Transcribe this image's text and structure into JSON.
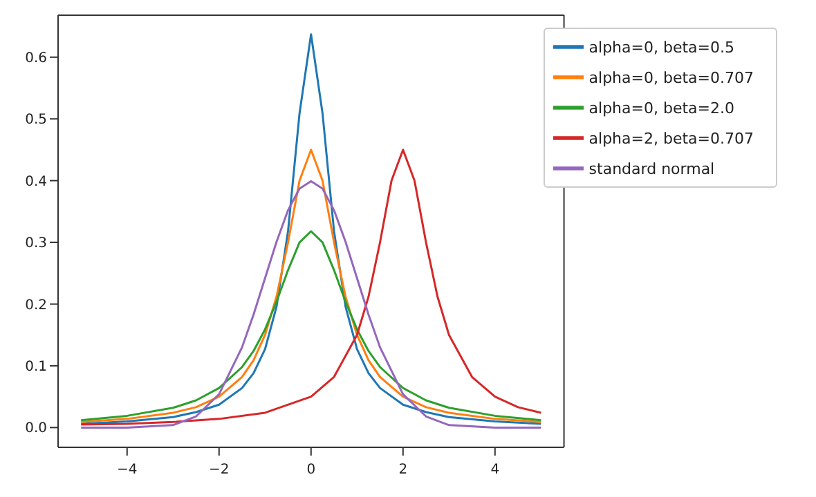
{
  "chart_data": {
    "type": "line",
    "xlim": [
      -5.5,
      5.5
    ],
    "ylim": [
      -0.032,
      0.668
    ],
    "xticks": [
      {
        "value": -4,
        "label": "−4"
      },
      {
        "value": -2,
        "label": "−2"
      },
      0,
      2,
      4
    ],
    "yticks": [
      {
        "value": 0,
        "label": "0.0"
      },
      0.1,
      0.2,
      0.3,
      0.4,
      0.5,
      0.6
    ],
    "grid": false,
    "legend": "top right",
    "marker": "none",
    "line_style": "solid",
    "x": [
      -5,
      -4,
      -3,
      -2.5,
      -2,
      -1.5,
      -1.25,
      -1,
      -0.75,
      -0.5,
      -0.25,
      0,
      0.25,
      0.5,
      0.75,
      1,
      1.25,
      1.5,
      2,
      2.5,
      3,
      4,
      5
    ],
    "series": [
      {
        "name": "alpha=0, beta=0.5",
        "color": "#1f77b4",
        "values": [
          0.006,
          0.01,
          0.017,
          0.025,
          0.037,
          0.064,
          0.088,
          0.127,
          0.196,
          0.318,
          0.509,
          0.637,
          0.509,
          0.318,
          0.196,
          0.127,
          0.088,
          0.064,
          0.037,
          0.025,
          0.017,
          0.01,
          0.006
        ]
      },
      {
        "name": "alpha=0, beta=0.707",
        "color": "#ff7f0e",
        "values": [
          0.009,
          0.014,
          0.024,
          0.033,
          0.05,
          0.082,
          0.109,
          0.15,
          0.212,
          0.3,
          0.4,
          0.45,
          0.4,
          0.3,
          0.212,
          0.15,
          0.109,
          0.082,
          0.05,
          0.033,
          0.024,
          0.014,
          0.009
        ]
      },
      {
        "name": "alpha=0, beta=2.0",
        "color": "#2ca02c",
        "values": [
          0.012,
          0.019,
          0.032,
          0.044,
          0.064,
          0.098,
          0.124,
          0.159,
          0.204,
          0.255,
          0.3,
          0.318,
          0.3,
          0.255,
          0.204,
          0.159,
          0.124,
          0.098,
          0.064,
          0.044,
          0.032,
          0.019,
          0.012
        ]
      },
      {
        "name": "alpha=2, beta=0.707",
        "color": "#d62728",
        "x": [
          -5,
          -4,
          -3,
          -2,
          -1,
          0,
          0.5,
          1,
          1.25,
          1.5,
          1.75,
          2,
          2.25,
          2.5,
          2.75,
          3,
          3.5,
          4,
          4.5,
          5
        ],
        "values": [
          0.005,
          0.006,
          0.009,
          0.014,
          0.024,
          0.05,
          0.082,
          0.15,
          0.212,
          0.3,
          0.4,
          0.45,
          0.4,
          0.3,
          0.212,
          0.15,
          0.082,
          0.05,
          0.033,
          0.024
        ]
      },
      {
        "name": "standard normal",
        "color": "#9467bd",
        "values": [
          0.0,
          0.0,
          0.004,
          0.018,
          0.054,
          0.13,
          0.183,
          0.242,
          0.301,
          0.352,
          0.387,
          0.399,
          0.387,
          0.352,
          0.301,
          0.242,
          0.183,
          0.13,
          0.054,
          0.018,
          0.004,
          0.0,
          0.0
        ]
      }
    ]
  }
}
